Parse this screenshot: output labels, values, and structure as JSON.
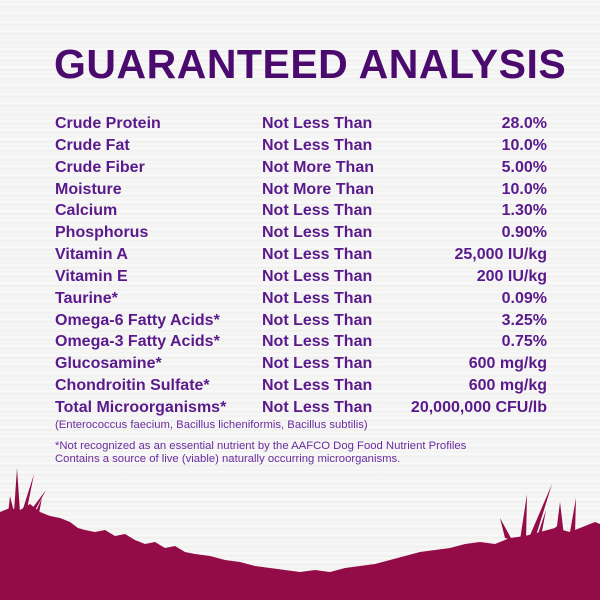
{
  "title": "GUARANTEED ANALYSIS",
  "rows": [
    {
      "nutrient": "Crude Protein",
      "condition": "Not Less Than",
      "value": "28.0%"
    },
    {
      "nutrient": "Crude Fat",
      "condition": "Not Less Than",
      "value": "10.0%"
    },
    {
      "nutrient": "Crude Fiber",
      "condition": "Not More Than",
      "value": "5.00%"
    },
    {
      "nutrient": "Moisture",
      "condition": "Not More Than",
      "value": "10.0%"
    },
    {
      "nutrient": "Calcium",
      "condition": "Not Less Than",
      "value": "1.30%"
    },
    {
      "nutrient": "Phosphorus",
      "condition": "Not Less Than",
      "value": "0.90%"
    },
    {
      "nutrient": "Vitamin A",
      "condition": "Not Less Than",
      "value": "25,000 IU/kg"
    },
    {
      "nutrient": "Vitamin E",
      "condition": "Not Less Than",
      "value": "200 IU/kg"
    },
    {
      "nutrient": "Taurine*",
      "condition": "Not Less Than",
      "value": "0.09%"
    },
    {
      "nutrient": "Omega-6 Fatty Acids*",
      "condition": "Not Less Than",
      "value": "3.25%"
    },
    {
      "nutrient": "Omega-3 Fatty Acids*",
      "condition": "Not Less Than",
      "value": "0.75%"
    },
    {
      "nutrient": "Glucosamine*",
      "condition": "Not Less Than",
      "value": "600 mg/kg"
    },
    {
      "nutrient": "Chondroitin Sulfate*",
      "condition": "Not Less Than",
      "value": "600 mg/kg"
    },
    {
      "nutrient": "Total Microorganisms*",
      "condition": "Not Less Than",
      "value": "20,000,000 CFU/lb"
    }
  ],
  "strains_note": "(Enterococcus faecium, Bacillus licheniformis, Bacillus subtilis)",
  "footnote_1": "*Not recognized as an essential nutrient by the AAFCO Dog Food Nutrient Profiles",
  "footnote_2": "Contains a source of live (viable) naturally occurring microorganisms.",
  "colors": {
    "title": "#4b0a6e",
    "text": "#5a1a8c",
    "grass": "#930c48"
  }
}
